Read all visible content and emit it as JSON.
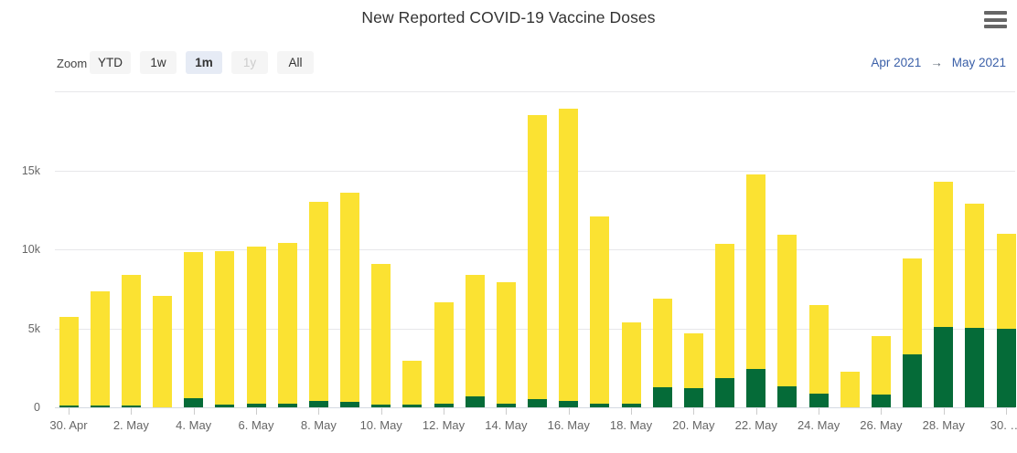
{
  "header": {
    "title": "New Reported COVID-19 Vaccine Doses",
    "menu_icon": "hamburger-menu-icon"
  },
  "range_selector": {
    "zoom_label": "Zoom",
    "buttons": [
      {
        "label": "YTD",
        "state": "normal"
      },
      {
        "label": "1w",
        "state": "normal"
      },
      {
        "label": "1m",
        "state": "selected"
      },
      {
        "label": "1y",
        "state": "disabled"
      },
      {
        "label": "All",
        "state": "normal"
      }
    ],
    "range_from": "Apr 2021",
    "range_arrow": "→",
    "range_to": "May 2021"
  },
  "colors": {
    "yellow_series": "#fbe232",
    "green_series": "#056b38",
    "gridline": "#e7e7ea",
    "axis_line": "#d5dae2",
    "axis_label": "#666666",
    "title_text": "#333333",
    "range_text_blue": "#3a5fa8",
    "selected_button_bg": "#e6ebf5",
    "button_bg": "#f5f5f5"
  },
  "chart_data": {
    "type": "bar",
    "stacked": true,
    "title": "New Reported COVID-19 Vaccine Doses",
    "xlabel": "",
    "ylabel": "",
    "ylim": [
      0,
      20000
    ],
    "grid": true,
    "legend": "none",
    "x": [
      "30. Apr",
      "1. May",
      "2. May",
      "3. May",
      "4. May",
      "5. May",
      "6. May",
      "7. May",
      "8. May",
      "9. May",
      "10. May",
      "11. May",
      "12. May",
      "13. May",
      "14. May",
      "15. May",
      "16. May",
      "17. May",
      "18. May",
      "19. May",
      "20. May",
      "21. May",
      "22. May",
      "23. May",
      "24. May",
      "25. May",
      "26. May",
      "27. May",
      "28. May",
      "29. May",
      "30. May"
    ],
    "series": [
      {
        "name": "green",
        "color": "#056b38",
        "values": [
          100,
          100,
          100,
          0,
          550,
          170,
          250,
          250,
          400,
          350,
          170,
          200,
          230,
          670,
          230,
          500,
          380,
          230,
          230,
          1280,
          1200,
          1860,
          2400,
          1350,
          840,
          0,
          800,
          3370,
          5100,
          5050,
          4950
        ]
      },
      {
        "name": "yellow",
        "color": "#fbe232",
        "values": [
          5600,
          7250,
          8300,
          7050,
          9300,
          9730,
          9900,
          10150,
          12600,
          13250,
          8930,
          2750,
          6420,
          7730,
          7670,
          18000,
          18520,
          11870,
          5120,
          5620,
          3500,
          8490,
          12350,
          9550,
          5610,
          2250,
          3700,
          6030,
          9200,
          7850,
          6050
        ]
      }
    ],
    "totals": [
      5700,
      7350,
      8400,
      7050,
      9850,
      9900,
      10150,
      10400,
      13000,
      13600,
      9100,
      2950,
      6650,
      8400,
      7900,
      18500,
      18900,
      12100,
      5350,
      6900,
      4700,
      10350,
      14750,
      10900,
      6450,
      2250,
      4500,
      9400,
      14300,
      12900,
      11000
    ],
    "ytick_values": [
      0,
      5000,
      10000,
      15000
    ],
    "ytick_labels": [
      "0",
      "5k",
      "10k",
      "15k"
    ],
    "xtick_indices": [
      0,
      2,
      4,
      6,
      8,
      10,
      12,
      14,
      16,
      18,
      20,
      22,
      24,
      26,
      28,
      30
    ],
    "xtick_labels": [
      "30. Apr",
      "2. May",
      "4. May",
      "6. May",
      "8. May",
      "10. May",
      "12. May",
      "14. May",
      "16. May",
      "18. May",
      "20. May",
      "22. May",
      "24. May",
      "26. May",
      "28. May",
      "30. …"
    ]
  }
}
